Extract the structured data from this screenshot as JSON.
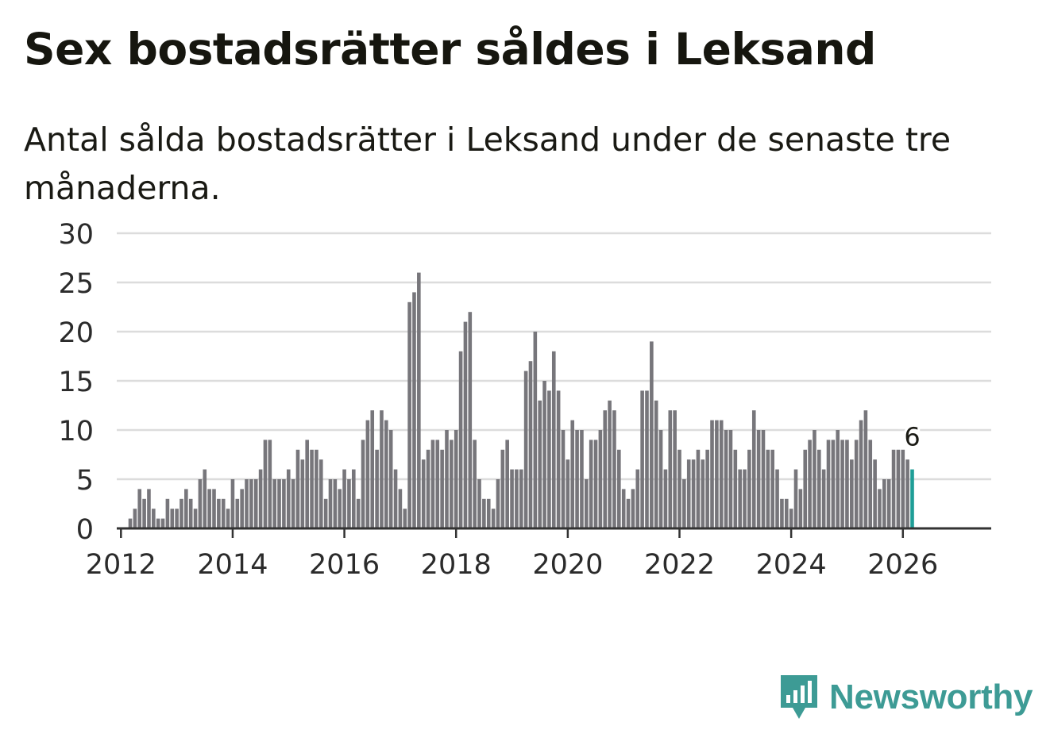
{
  "title": "Sex bostadsrätter såldes i Leksand",
  "subtitle": "Antal sålda bostadsrätter i Leksand under de senaste tre månaderna.",
  "brand": {
    "name": "Newsworthy",
    "color": "#3d9b95",
    "icon": "newsworthy-logo-icon"
  },
  "colors": {
    "bar": "#77767b",
    "highlight": "#1f9e97",
    "grid": "#dcdcdc",
    "axis": "#333333",
    "text": "#2b2b2b"
  },
  "chart_data": {
    "type": "bar",
    "title": "Sex bostadsrätter såldes i Leksand",
    "xlabel": "",
    "ylabel": "",
    "ylim": [
      0,
      30
    ],
    "yticks": [
      0,
      5,
      10,
      15,
      20,
      25,
      30
    ],
    "xticks": [
      "2012",
      "2014",
      "2016",
      "2018",
      "2020",
      "2022",
      "2024",
      "2026"
    ],
    "first_period": "2012-01",
    "last_period": "2026-03",
    "highlight_label": "6",
    "values": [
      0,
      0,
      1,
      2,
      4,
      3,
      4,
      2,
      1,
      1,
      3,
      2,
      2,
      3,
      4,
      3,
      2,
      5,
      6,
      4,
      4,
      3,
      3,
      2,
      5,
      3,
      4,
      5,
      5,
      5,
      6,
      9,
      9,
      5,
      5,
      5,
      6,
      5,
      8,
      7,
      9,
      8,
      8,
      7,
      3,
      5,
      5,
      4,
      6,
      5,
      6,
      3,
      9,
      11,
      12,
      8,
      12,
      11,
      10,
      6,
      4,
      2,
      23,
      24,
      26,
      7,
      8,
      9,
      9,
      8,
      10,
      9,
      10,
      18,
      21,
      22,
      9,
      5,
      3,
      3,
      2,
      5,
      8,
      9,
      6,
      6,
      6,
      16,
      17,
      20,
      13,
      15,
      14,
      18,
      14,
      10,
      7,
      11,
      10,
      10,
      5,
      9,
      9,
      10,
      12,
      13,
      12,
      8,
      4,
      3,
      4,
      6,
      14,
      14,
      19,
      13,
      10,
      6,
      12,
      12,
      8,
      5,
      7,
      7,
      8,
      7,
      8,
      11,
      11,
      11,
      10,
      10,
      8,
      6,
      6,
      8,
      12,
      10,
      10,
      8,
      8,
      6,
      3,
      3,
      2,
      6,
      4,
      8,
      9,
      10,
      8,
      6,
      9,
      9,
      10,
      9,
      9,
      7,
      9,
      11,
      12,
      9,
      7,
      4,
      5,
      5,
      8,
      8,
      8,
      7,
      6
    ]
  }
}
